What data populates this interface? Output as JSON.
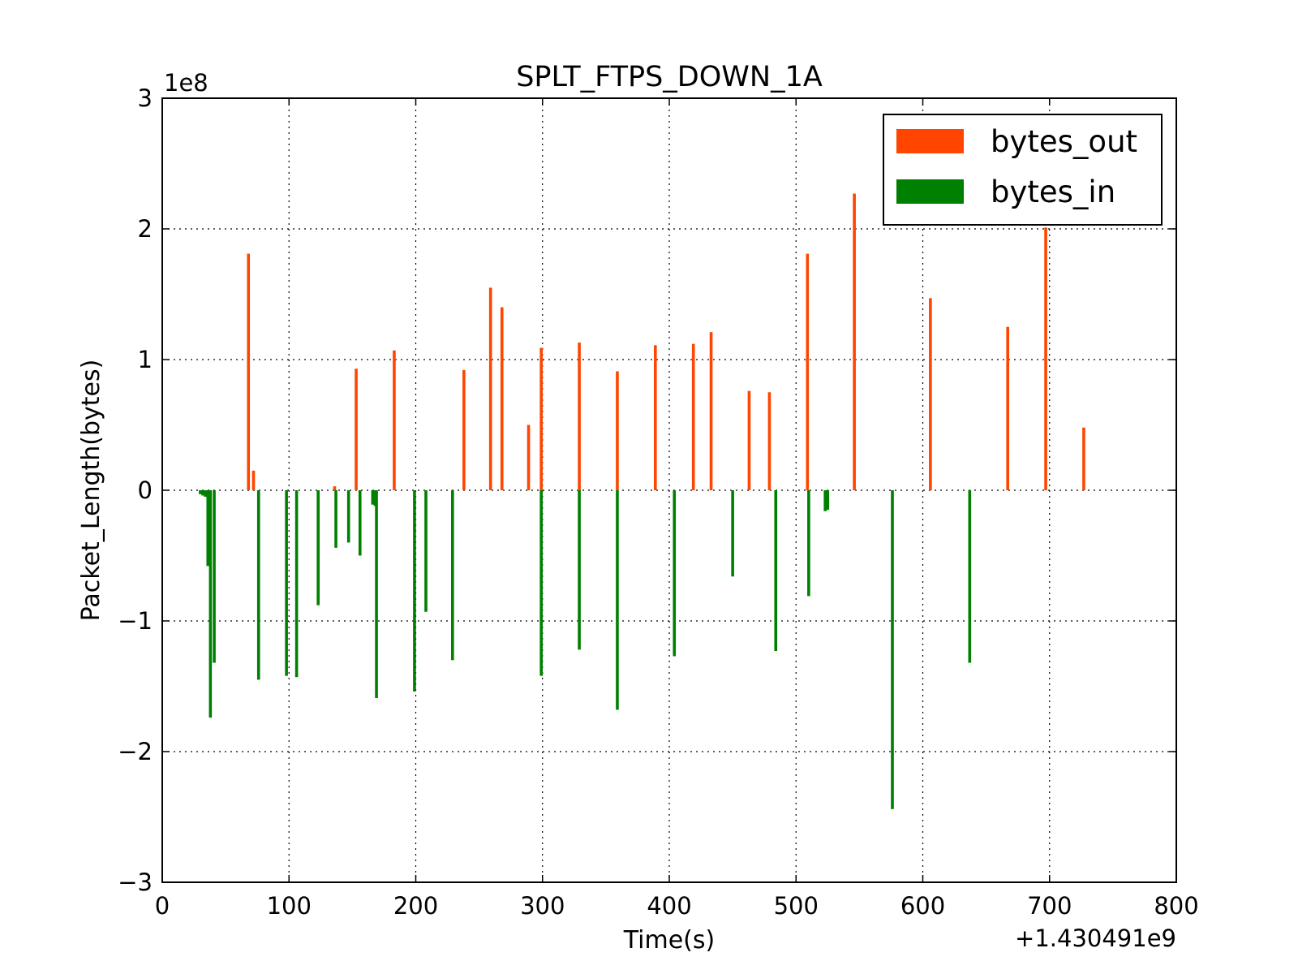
{
  "chart_data": {
    "type": "bar",
    "title": "SPLT_FTPS_DOWN_1A",
    "xlabel": "Time(s)",
    "ylabel": "Packet_Length(bytes)",
    "xlim": [
      0,
      800
    ],
    "ylim": [
      -300000000,
      300000000
    ],
    "x_offset_text": "+1.430491e9",
    "y_exponent_text": "1e8",
    "x_ticks": [
      0,
      100,
      200,
      300,
      400,
      500,
      600,
      700,
      800
    ],
    "x_tick_labels": [
      "0",
      "100",
      "200",
      "300",
      "400",
      "500",
      "600",
      "700",
      "800"
    ],
    "y_ticks": [
      -300000000,
      -200000000,
      -100000000,
      0,
      100000000,
      200000000,
      300000000
    ],
    "y_tick_labels": [
      "−3",
      "−2",
      "−1",
      "0",
      "1",
      "2",
      "3"
    ],
    "grid": true,
    "legend_position": "top-right",
    "series": [
      {
        "name": "bytes_out",
        "color": "#ff4500",
        "x": [
          68,
          72,
          136,
          153,
          183,
          238,
          259,
          268,
          289,
          299,
          329,
          359,
          389,
          419,
          433,
          463,
          479,
          509,
          546,
          606,
          667,
          697,
          727
        ],
        "values": [
          181000000,
          15000000,
          3000000,
          93000000,
          107000000,
          92000000,
          155000000,
          140000000,
          50000000,
          109000000,
          113000000,
          91000000,
          111000000,
          112000000,
          121000000,
          76000000,
          75000000,
          181000000,
          227000000,
          147000000,
          125000000,
          201000000,
          48000000
        ]
      },
      {
        "name": "bytes_in",
        "color": "#008000",
        "x": [
          30,
          32,
          34,
          36,
          38,
          41,
          76,
          98,
          106,
          123,
          137,
          147,
          156,
          166,
          168,
          169,
          199,
          208,
          229,
          299,
          329,
          359,
          404,
          450,
          484,
          510,
          523,
          525,
          576,
          637
        ],
        "values": [
          -3000000,
          -4000000,
          -5000000,
          -58000000,
          -174000000,
          -132000000,
          -145000000,
          -142000000,
          -143000000,
          -88000000,
          -44000000,
          -40000000,
          -50000000,
          -11000000,
          -12000000,
          -159000000,
          -154000000,
          -93000000,
          -130000000,
          -142000000,
          -122000000,
          -168000000,
          -127000000,
          -66000000,
          -123000000,
          -81000000,
          -16000000,
          -15000000,
          -244000000,
          -132000000
        ]
      }
    ]
  }
}
